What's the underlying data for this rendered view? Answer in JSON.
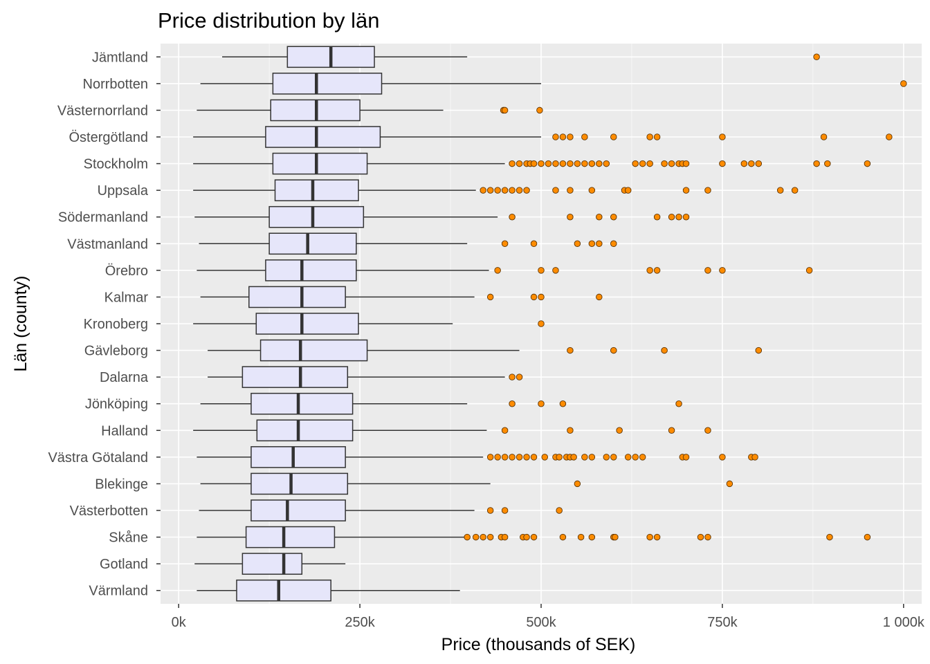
{
  "chart_data": {
    "type": "boxplot",
    "orientation": "horizontal",
    "title": "Price distribution by län",
    "xlabel": "Price (thousands of SEK)",
    "ylabel": "Län (county)",
    "xlim": [
      -25,
      1025
    ],
    "x_ticks": [
      0,
      250,
      500,
      750,
      1000
    ],
    "x_tick_labels": [
      "0k",
      "250k",
      "500k",
      "750k",
      "1 000k"
    ],
    "grid": true,
    "colors": {
      "panel_background": "#ebebeb",
      "grid_major": "#ffffff",
      "box_fill": "#e6e6fa",
      "box_line": "#333333",
      "outlier_fill": "#ff8c00",
      "outlier_stroke": "#5a3200"
    },
    "categories": [
      "Jämtland",
      "Norrbotten",
      "Västernorrland",
      "Östergötland",
      "Stockholm",
      "Uppsala",
      "Södermanland",
      "Västmanland",
      "Örebro",
      "Kalmar",
      "Kronoberg",
      "Gävleborg",
      "Dalarna",
      "Jönköping",
      "Halland",
      "Västra Götaland",
      "Blekinge",
      "Västerbotten",
      "Skåne",
      "Gotland",
      "Värmland"
    ],
    "boxes": [
      {
        "county": "Jämtland",
        "whisker_low": 60,
        "q1": 150,
        "median": 210,
        "q3": 270,
        "whisker_high": 398,
        "outliers": [
          880
        ]
      },
      {
        "county": "Norrbotten",
        "whisker_low": 30,
        "q1": 130,
        "median": 190,
        "q3": 280,
        "whisker_high": 500,
        "outliers": [
          1000
        ]
      },
      {
        "county": "Västernorrland",
        "whisker_low": 25,
        "q1": 127,
        "median": 190,
        "q3": 250,
        "whisker_high": 365,
        "outliers": [
          448,
          450,
          498
        ]
      },
      {
        "county": "Östergötland",
        "whisker_low": 20,
        "q1": 120,
        "median": 190,
        "q3": 278,
        "whisker_high": 500,
        "outliers": [
          520,
          530,
          540,
          560,
          600,
          650,
          660,
          750,
          890,
          980
        ]
      },
      {
        "county": "Stockholm",
        "whisker_low": 20,
        "q1": 130,
        "median": 190,
        "q3": 260,
        "whisker_high": 450,
        "outliers": [
          460,
          470,
          480,
          485,
          490,
          500,
          510,
          520,
          530,
          540,
          550,
          560,
          570,
          580,
          590,
          630,
          640,
          650,
          670,
          680,
          690,
          695,
          700,
          750,
          780,
          790,
          800,
          880,
          895,
          950
        ]
      },
      {
        "county": "Uppsala",
        "whisker_low": 20,
        "q1": 133,
        "median": 185,
        "q3": 248,
        "whisker_high": 410,
        "outliers": [
          420,
          430,
          440,
          450,
          460,
          470,
          480,
          520,
          540,
          570,
          615,
          620,
          700,
          730,
          830,
          850
        ]
      },
      {
        "county": "Södermanland",
        "whisker_low": 22,
        "q1": 125,
        "median": 185,
        "q3": 255,
        "whisker_high": 440,
        "outliers": [
          460,
          540,
          580,
          600,
          660,
          680,
          690,
          700
        ]
      },
      {
        "county": "Västmanland",
        "whisker_low": 28,
        "q1": 125,
        "median": 178,
        "q3": 245,
        "whisker_high": 398,
        "outliers": [
          450,
          490,
          550,
          570,
          580,
          600
        ]
      },
      {
        "county": "Örebro",
        "whisker_low": 25,
        "q1": 120,
        "median": 170,
        "q3": 245,
        "whisker_high": 428,
        "outliers": [
          440,
          500,
          520,
          650,
          660,
          730,
          750,
          870
        ]
      },
      {
        "county": "Kalmar",
        "whisker_low": 30,
        "q1": 97,
        "median": 170,
        "q3": 230,
        "whisker_high": 408,
        "outliers": [
          430,
          490,
          500,
          580
        ]
      },
      {
        "county": "Kronoberg",
        "whisker_low": 20,
        "q1": 107,
        "median": 170,
        "q3": 248,
        "whisker_high": 378,
        "outliers": [
          500
        ]
      },
      {
        "county": "Gävleborg",
        "whisker_low": 40,
        "q1": 113,
        "median": 168,
        "q3": 260,
        "whisker_high": 470,
        "outliers": [
          540,
          600,
          670,
          800
        ]
      },
      {
        "county": "Dalarna",
        "whisker_low": 40,
        "q1": 88,
        "median": 168,
        "q3": 233,
        "whisker_high": 450,
        "outliers": [
          460,
          470
        ]
      },
      {
        "county": "Jönköping",
        "whisker_low": 30,
        "q1": 100,
        "median": 165,
        "q3": 240,
        "whisker_high": 398,
        "outliers": [
          460,
          500,
          530,
          690
        ]
      },
      {
        "county": "Halland",
        "whisker_low": 20,
        "q1": 108,
        "median": 165,
        "q3": 240,
        "whisker_high": 425,
        "outliers": [
          450,
          540,
          608,
          680,
          730
        ]
      },
      {
        "county": "Västra Götaland",
        "whisker_low": 25,
        "q1": 100,
        "median": 158,
        "q3": 230,
        "whisker_high": 420,
        "outliers": [
          430,
          440,
          450,
          460,
          470,
          480,
          490,
          505,
          520,
          525,
          535,
          540,
          545,
          560,
          570,
          590,
          600,
          620,
          630,
          640,
          695,
          700,
          750,
          790,
          795
        ]
      },
      {
        "county": "Blekinge",
        "whisker_low": 30,
        "q1": 100,
        "median": 155,
        "q3": 233,
        "whisker_high": 430,
        "outliers": [
          550,
          760
        ]
      },
      {
        "county": "Västerbotten",
        "whisker_low": 28,
        "q1": 100,
        "median": 150,
        "q3": 230,
        "whisker_high": 408,
        "outliers": [
          430,
          450,
          525
        ]
      },
      {
        "county": "Skåne",
        "whisker_low": 25,
        "q1": 93,
        "median": 145,
        "q3": 215,
        "whisker_high": 395,
        "outliers": [
          398,
          410,
          420,
          430,
          445,
          450,
          475,
          480,
          490,
          530,
          555,
          570,
          600,
          602,
          650,
          660,
          720,
          730,
          898,
          950
        ]
      },
      {
        "county": "Gotland",
        "whisker_low": 22,
        "q1": 88,
        "median": 145,
        "q3": 170,
        "whisker_high": 230,
        "outliers": []
      },
      {
        "county": "Värmland",
        "whisker_low": 25,
        "q1": 80,
        "median": 138,
        "q3": 210,
        "whisker_high": 388,
        "outliers": []
      }
    ]
  }
}
